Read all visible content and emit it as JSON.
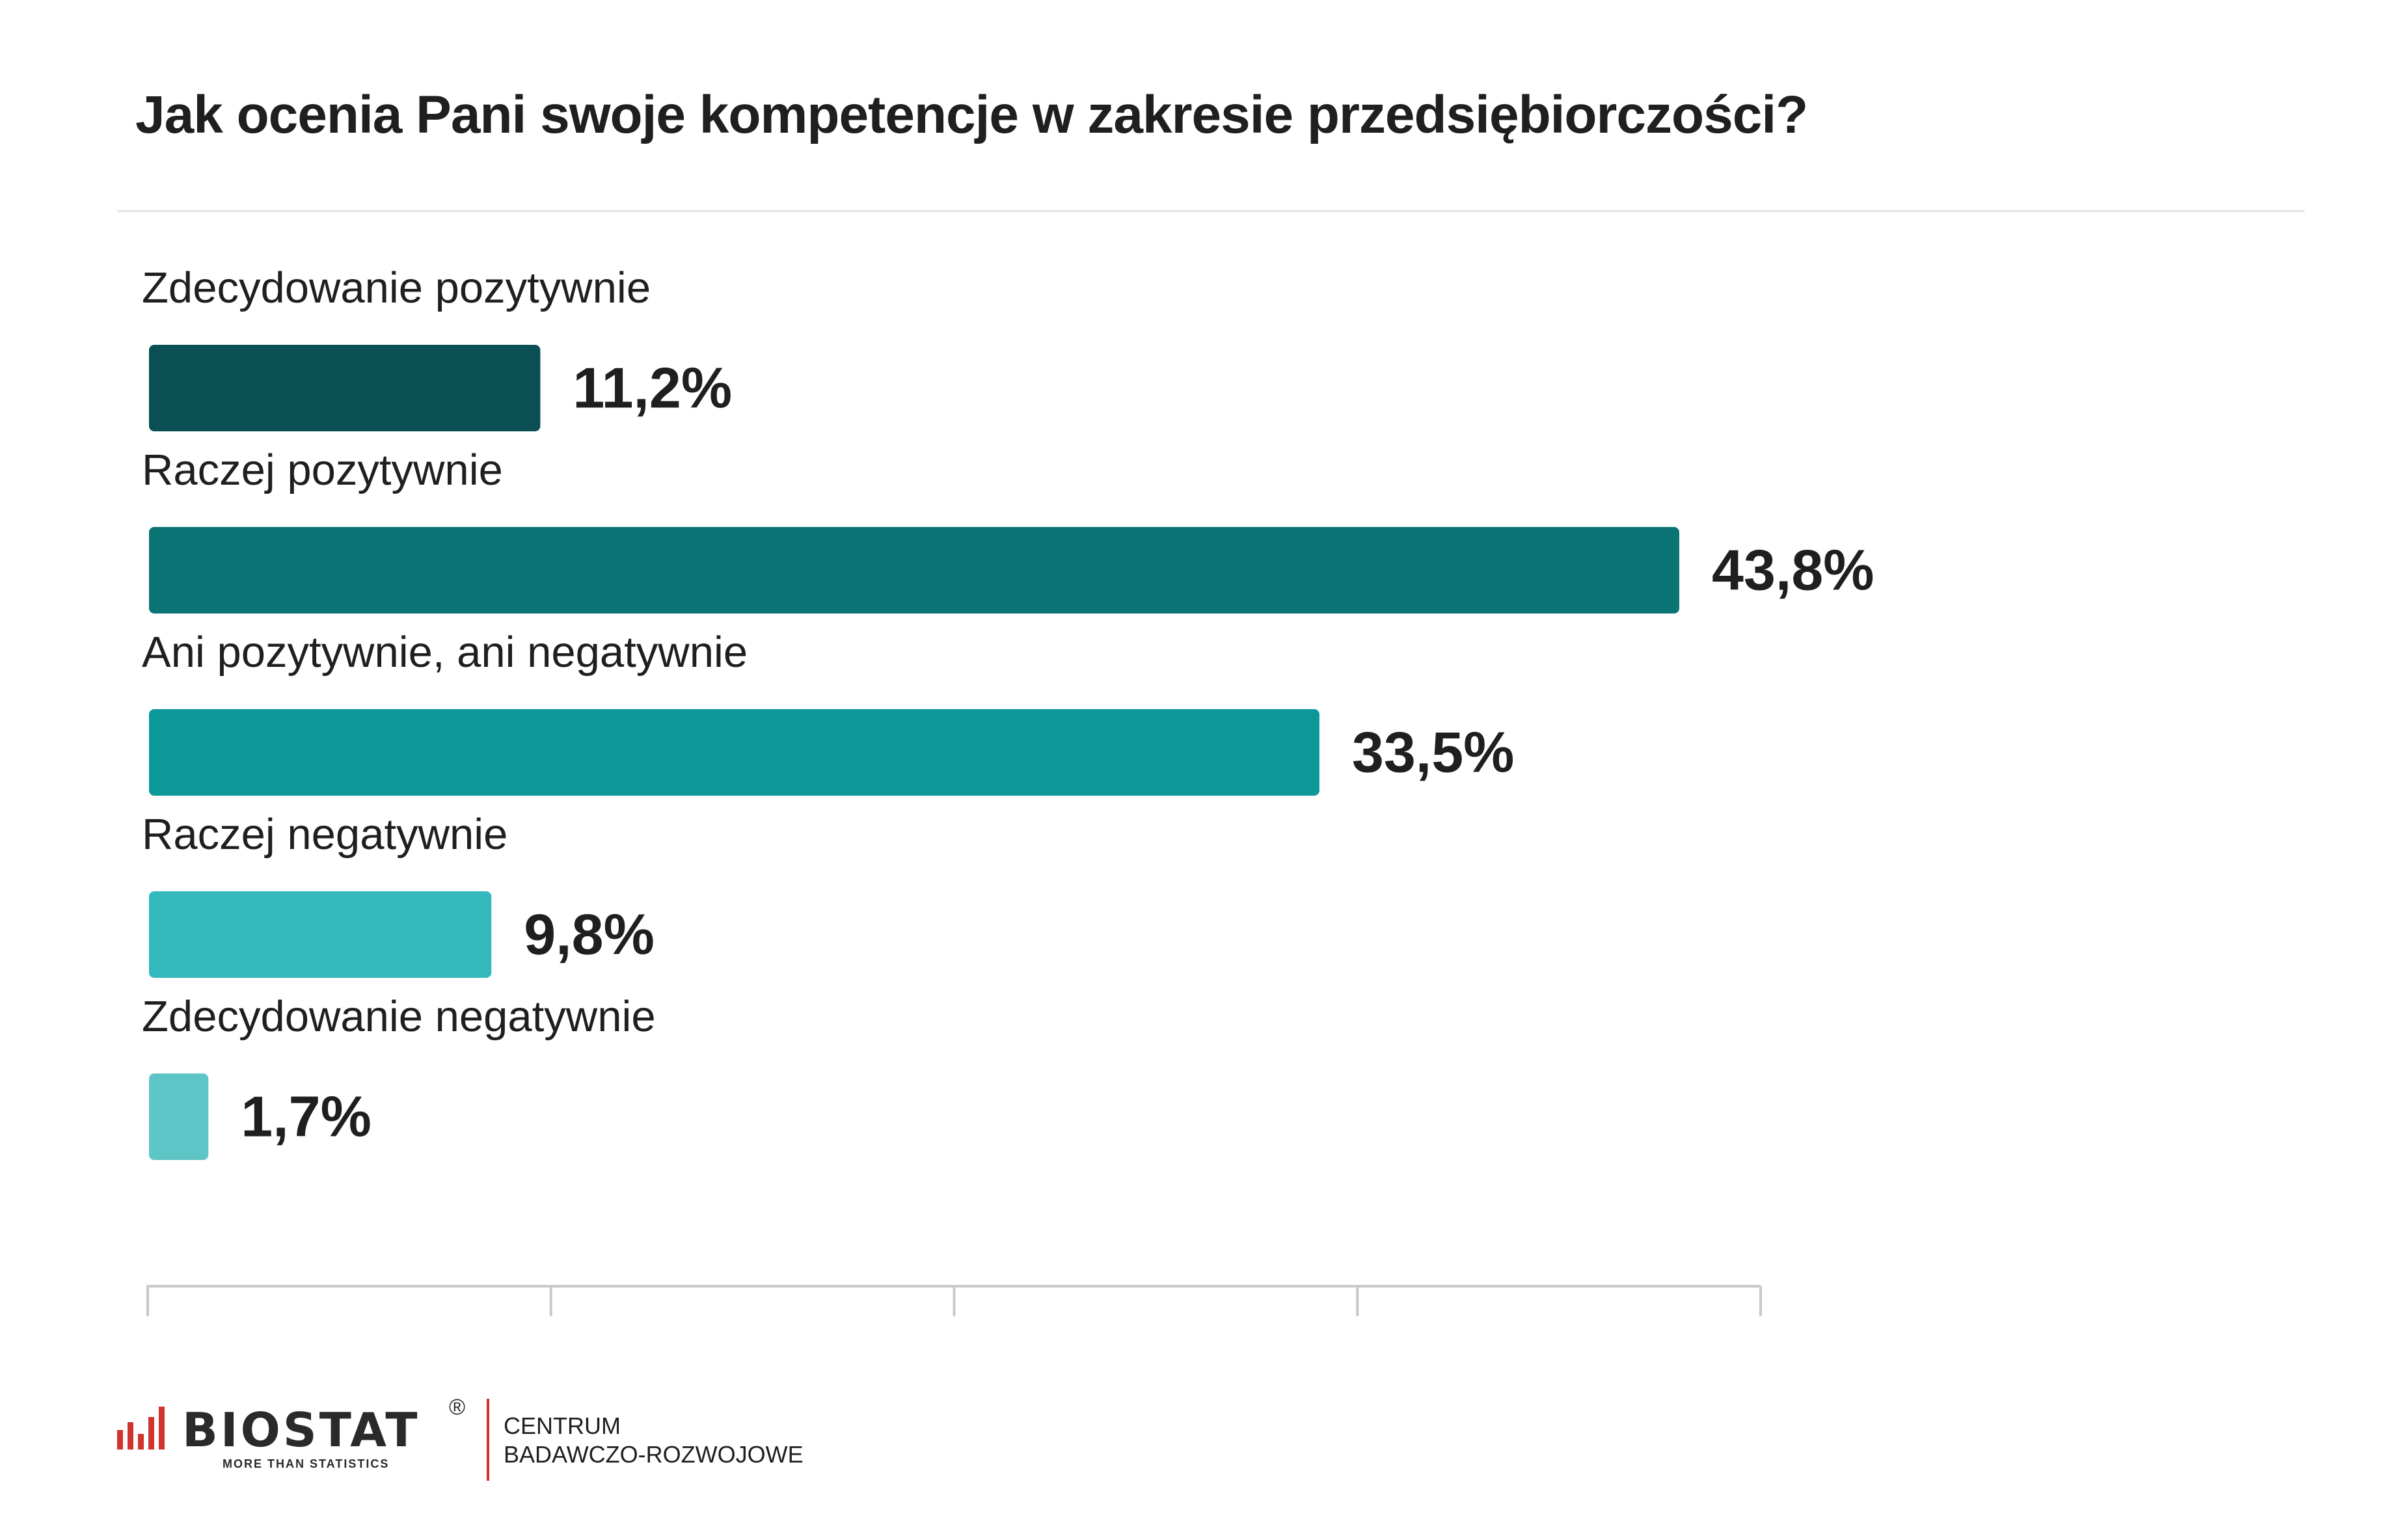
{
  "chart_data": {
    "type": "bar",
    "orientation": "horizontal",
    "title": "Jak ocenia Pani swoje kompetencje w zakresie przedsiębiorczości?",
    "categories": [
      "Zdecydowanie pozytywnie",
      "Raczej pozytywnie",
      "Ani pozytywnie, ani negatywnie",
      "Raczej negatywnie",
      "Zdecydowanie negatywnie"
    ],
    "values": [
      11.2,
      43.8,
      33.5,
      9.8,
      1.7
    ],
    "value_labels": [
      "11,2%",
      "43,8%",
      "33,5%",
      "9,8%",
      "1,7%"
    ],
    "colors": [
      "#0a4f54",
      "#0b7474",
      "#0c9898",
      "#33b9bc",
      "#5ec5c7"
    ],
    "xlim": [
      0,
      46
    ],
    "axis_ticks": 5,
    "grid": false,
    "legend": "none"
  },
  "footer": {
    "logo_text": "BIOSTAT",
    "logo_registered": "®",
    "logo_tagline": "MORE THAN STATISTICS",
    "unit_line1": "CENTRUM",
    "unit_line2": "BADAWCZO-ROZWOJOWE",
    "brand_red": "#d0342c"
  }
}
